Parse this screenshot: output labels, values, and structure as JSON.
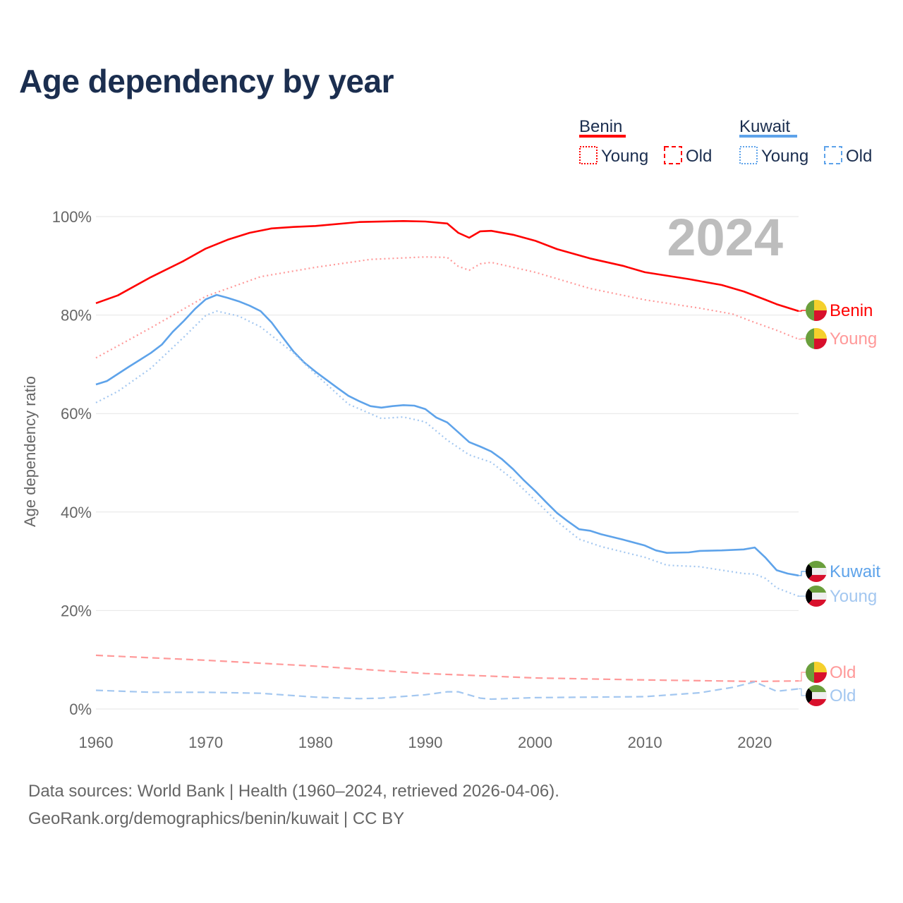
{
  "title": "Age dependency by year",
  "footer": {
    "line1": "Data sources: World Bank | Health (1960–2024, retrieved 2026-04-06).",
    "line2": "GeoRank.org/demographics/benin/kuwait | CC BY"
  },
  "legend": {
    "groups": [
      {
        "country": "Benin",
        "young": "Young",
        "old": "Old"
      },
      {
        "country": "Kuwait",
        "young": "Young",
        "old": "Old"
      }
    ]
  },
  "colors": {
    "benin": "#ff0000",
    "benin_light": "#ff9999",
    "kuwait": "#5ea3ea",
    "kuwait_light": "#a3c7f0",
    "text": "#1b2e4f",
    "axis": "#666666",
    "grid": "#e6e6e6",
    "year_overlay": "#bdbdbd"
  },
  "chart_data": {
    "type": "line",
    "title": "Age dependency by year",
    "xlabel": "",
    "ylabel": "Age dependency ratio",
    "xlim": [
      1960,
      2024
    ],
    "ylim": [
      0,
      100
    ],
    "x_ticks": [
      "1960",
      "1970",
      "1980",
      "1990",
      "2000",
      "2010",
      "2020"
    ],
    "y_ticks": [
      "0%",
      "20%",
      "40%",
      "60%",
      "80%",
      "100%"
    ],
    "year_overlay": "2024",
    "grid": true,
    "series": [
      {
        "name": "Benin",
        "end_label": "Benin",
        "style": "solid",
        "color_key": "benin",
        "flag": "benin",
        "points": [
          [
            1960,
            82.4
          ],
          [
            1962,
            84
          ],
          [
            1965,
            87.7
          ],
          [
            1968,
            91
          ],
          [
            1970,
            93.5
          ],
          [
            1972,
            95.3
          ],
          [
            1974,
            96.7
          ],
          [
            1976,
            97.6
          ],
          [
            1978,
            97.9
          ],
          [
            1980,
            98.1
          ],
          [
            1984,
            98.9
          ],
          [
            1988,
            99.1
          ],
          [
            1990,
            99
          ],
          [
            1992,
            98.6
          ],
          [
            1993,
            96.7
          ],
          [
            1994,
            95.7
          ],
          [
            1995,
            97
          ],
          [
            1996,
            97.1
          ],
          [
            1998,
            96.3
          ],
          [
            2000,
            95.1
          ],
          [
            2002,
            93.4
          ],
          [
            2005,
            91.5
          ],
          [
            2008,
            90
          ],
          [
            2010,
            88.7
          ],
          [
            2014,
            87.3
          ],
          [
            2017,
            86.1
          ],
          [
            2019,
            84.8
          ],
          [
            2021,
            83.1
          ],
          [
            2022,
            82.2
          ],
          [
            2024,
            80.8
          ]
        ]
      },
      {
        "name": "Benin Young",
        "end_label": "Young",
        "style": "dotted",
        "color_key": "benin_light",
        "flag": "benin",
        "points": [
          [
            1960,
            71.3
          ],
          [
            1965,
            77.4
          ],
          [
            1970,
            83.8
          ],
          [
            1975,
            87.8
          ],
          [
            1980,
            89.7
          ],
          [
            1985,
            91.3
          ],
          [
            1990,
            91.8
          ],
          [
            1992,
            91.7
          ],
          [
            1993,
            89.9
          ],
          [
            1994,
            89.1
          ],
          [
            1995,
            90.4
          ],
          [
            1996,
            90.7
          ],
          [
            2000,
            88.7
          ],
          [
            2005,
            85.4
          ],
          [
            2010,
            83.1
          ],
          [
            2015,
            81.4
          ],
          [
            2018,
            80.2
          ],
          [
            2020,
            78.5
          ],
          [
            2022,
            76.9
          ],
          [
            2024,
            75.1
          ]
        ]
      },
      {
        "name": "Kuwait",
        "end_label": "Kuwait",
        "style": "solid",
        "color_key": "kuwait",
        "flag": "kuwait",
        "points": [
          [
            1960,
            65.9
          ],
          [
            1961,
            66.6
          ],
          [
            1963,
            69.5
          ],
          [
            1964,
            70.9
          ],
          [
            1965,
            72.3
          ],
          [
            1966,
            74
          ],
          [
            1967,
            76.6
          ],
          [
            1968,
            78.8
          ],
          [
            1969,
            81.2
          ],
          [
            1970,
            83.2
          ],
          [
            1971,
            84.1
          ],
          [
            1972,
            83.5
          ],
          [
            1973,
            82.8
          ],
          [
            1974,
            81.9
          ],
          [
            1975,
            80.8
          ],
          [
            1976,
            78.5
          ],
          [
            1977,
            75.5
          ],
          [
            1978,
            72.6
          ],
          [
            1979,
            70.3
          ],
          [
            1980,
            68.5
          ],
          [
            1982,
            65.2
          ],
          [
            1983,
            63.6
          ],
          [
            1984,
            62.5
          ],
          [
            1985,
            61.5
          ],
          [
            1986,
            61.2
          ],
          [
            1987,
            61.5
          ],
          [
            1988,
            61.7
          ],
          [
            1989,
            61.6
          ],
          [
            1990,
            60.9
          ],
          [
            1991,
            59.2
          ],
          [
            1992,
            58.2
          ],
          [
            1993,
            56.2
          ],
          [
            1994,
            54.2
          ],
          [
            1995,
            53.3
          ],
          [
            1996,
            52.3
          ],
          [
            1997,
            50.7
          ],
          [
            1998,
            48.7
          ],
          [
            1999,
            46.4
          ],
          [
            2000,
            44.3
          ],
          [
            2001,
            42
          ],
          [
            2002,
            39.8
          ],
          [
            2003,
            38.1
          ],
          [
            2004,
            36.5
          ],
          [
            2005,
            36.2
          ],
          [
            2006,
            35.5
          ],
          [
            2008,
            34.4
          ],
          [
            2010,
            33.2
          ],
          [
            2011,
            32.2
          ],
          [
            2012,
            31.7
          ],
          [
            2014,
            31.8
          ],
          [
            2015,
            32.1
          ],
          [
            2017,
            32.2
          ],
          [
            2019,
            32.4
          ],
          [
            2020,
            32.8
          ],
          [
            2021,
            30.7
          ],
          [
            2022,
            28.2
          ],
          [
            2023,
            27.5
          ],
          [
            2024,
            27.1
          ]
        ]
      },
      {
        "name": "Kuwait Young",
        "end_label": "Young",
        "style": "dotted",
        "color_key": "kuwait_light",
        "flag": "kuwait",
        "points": [
          [
            1960,
            62.2
          ],
          [
            1962,
            64.5
          ],
          [
            1965,
            69.2
          ],
          [
            1968,
            75.5
          ],
          [
            1970,
            79.9
          ],
          [
            1971,
            80.8
          ],
          [
            1973,
            79.8
          ],
          [
            1975,
            77.6
          ],
          [
            1978,
            72.3
          ],
          [
            1980,
            68
          ],
          [
            1983,
            61.9
          ],
          [
            1986,
            59
          ],
          [
            1988,
            59.3
          ],
          [
            1990,
            58.3
          ],
          [
            1992,
            54.6
          ],
          [
            1994,
            51.6
          ],
          [
            1996,
            50.1
          ],
          [
            1998,
            46.6
          ],
          [
            2000,
            42.4
          ],
          [
            2002,
            38.1
          ],
          [
            2004,
            34.5
          ],
          [
            2006,
            33
          ],
          [
            2008,
            31.9
          ],
          [
            2010,
            30.8
          ],
          [
            2012,
            29.2
          ],
          [
            2015,
            28.9
          ],
          [
            2017,
            28.2
          ],
          [
            2019,
            27.5
          ],
          [
            2020,
            27.4
          ],
          [
            2021,
            26.5
          ],
          [
            2022,
            24.6
          ],
          [
            2024,
            22.9
          ]
        ]
      },
      {
        "name": "Benin Old",
        "end_label": "Old",
        "style": "dashed",
        "color_key": "benin_light",
        "flag": "benin",
        "points": [
          [
            1960,
            10.9
          ],
          [
            1970,
            9.9
          ],
          [
            1980,
            8.7
          ],
          [
            1990,
            7.2
          ],
          [
            2000,
            6.3
          ],
          [
            2010,
            5.9
          ],
          [
            2020,
            5.6
          ],
          [
            2024,
            5.7
          ]
        ]
      },
      {
        "name": "Kuwait Old",
        "end_label": "Old",
        "style": "dashed",
        "color_key": "kuwait_light",
        "flag": "kuwait",
        "points": [
          [
            1960,
            3.8
          ],
          [
            1965,
            3.4
          ],
          [
            1970,
            3.4
          ],
          [
            1975,
            3.2
          ],
          [
            1980,
            2.4
          ],
          [
            1984,
            2.1
          ],
          [
            1986,
            2.2
          ],
          [
            1990,
            2.9
          ],
          [
            1992,
            3.5
          ],
          [
            1993,
            3.5
          ],
          [
            1995,
            2.2
          ],
          [
            1996,
            2.0
          ],
          [
            2000,
            2.3
          ],
          [
            2010,
            2.5
          ],
          [
            2015,
            3.3
          ],
          [
            2018,
            4.4
          ],
          [
            2020,
            5.5
          ],
          [
            2022,
            3.6
          ],
          [
            2024,
            4.1
          ]
        ]
      }
    ]
  }
}
